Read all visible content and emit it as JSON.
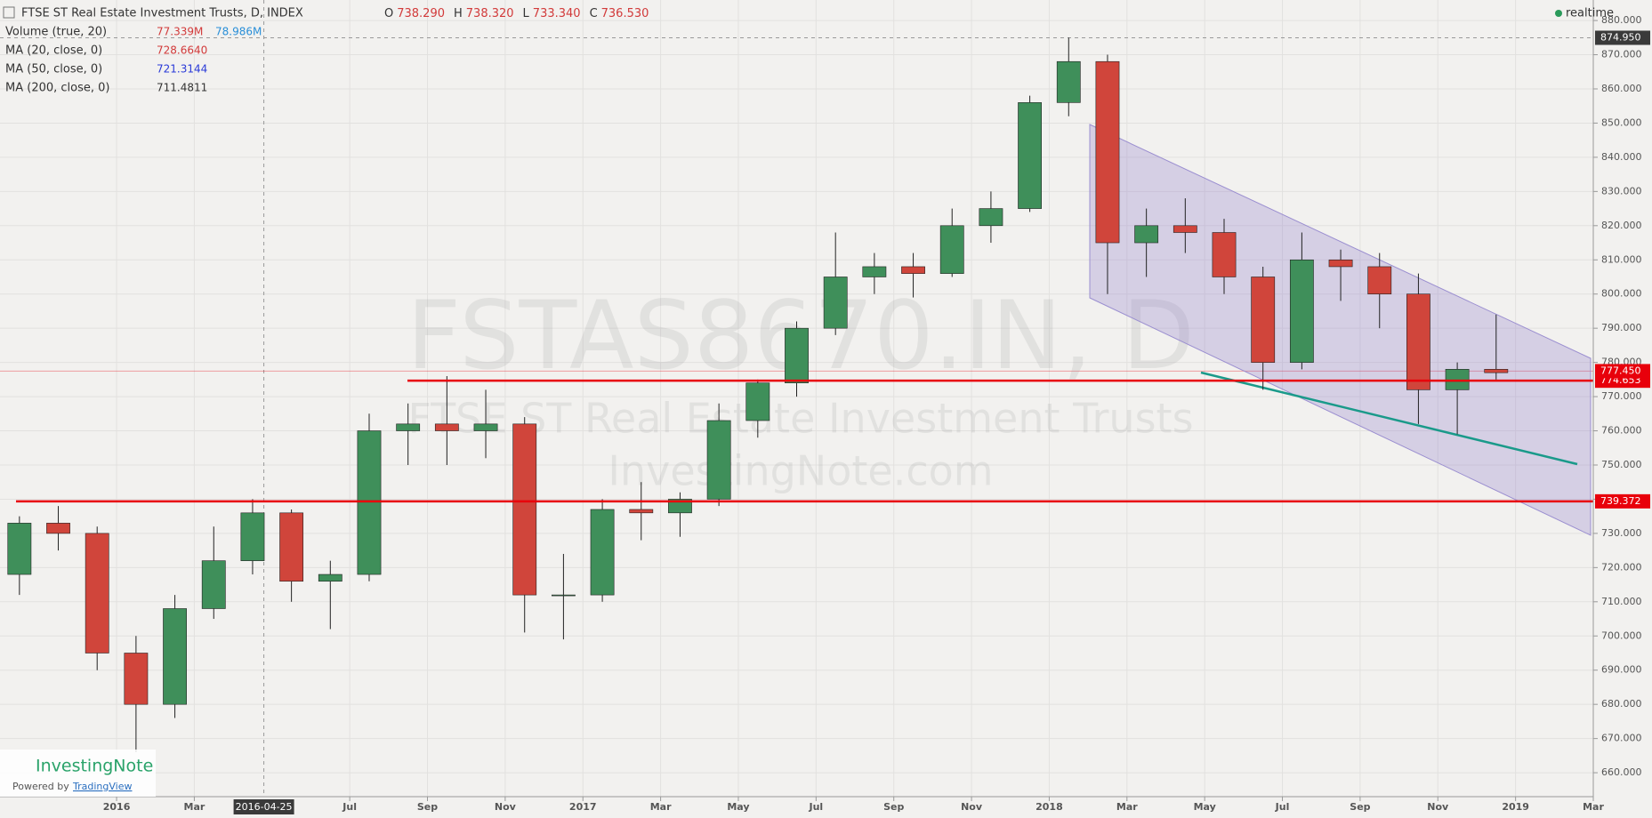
{
  "chart_data": {
    "type": "candlestick",
    "title": "FTSE ST Real Estate Investment Trusts, D, INDEX",
    "ohlc": [
      {
        "key": "O",
        "value": "738.290"
      },
      {
        "key": "H",
        "value": "738.320"
      },
      {
        "key": "L",
        "value": "733.340"
      },
      {
        "key": "C",
        "value": "736.530"
      }
    ],
    "indicators": [
      {
        "label": "Volume (true, 20)",
        "values": [
          "77.339M",
          "78.986M"
        ],
        "colors": [
          "#d23a3a",
          "#2a8fd8"
        ]
      },
      {
        "label": "MA (20, close, 0)",
        "values": [
          "728.6640"
        ],
        "colors": [
          "#d23a3a"
        ]
      },
      {
        "label": "MA (50, close, 0)",
        "values": [
          "721.3144"
        ],
        "colors": [
          "#2a3ad8"
        ]
      },
      {
        "label": "MA (200, close, 0)",
        "values": [
          "711.4811"
        ],
        "colors": [
          "#333333"
        ]
      }
    ],
    "status": "realtime",
    "watermark": [
      "FSTAS8670.IN, D",
      "FTSE ST Real Estate Investment Trusts",
      "InvestingNote.com"
    ],
    "logo": "InvestingNote",
    "powered": "Powered by",
    "provider": "TradingView",
    "x": [
      "2015-10",
      "2015-11",
      "2015-12",
      "2016-01",
      "2016-02",
      "2016-03",
      "2016-04",
      "2016-05",
      "2016-06",
      "2016-07",
      "2016-08",
      "2016-09",
      "2016-10",
      "2016-11",
      "2016-12",
      "2017-01",
      "2017-02",
      "2017-03",
      "2017-04",
      "2017-05",
      "2017-06",
      "2017-07",
      "2017-08",
      "2017-09",
      "2017-10",
      "2017-11",
      "2017-12",
      "2018-01",
      "2018-02",
      "2018-03",
      "2018-04",
      "2018-05",
      "2018-06",
      "2018-07",
      "2018-08",
      "2018-09",
      "2018-10",
      "2018-11",
      "2018-12"
    ],
    "open": [
      718,
      733,
      730,
      695,
      680,
      708,
      722,
      736,
      716,
      718,
      760,
      762,
      760,
      762,
      712,
      712,
      737,
      736,
      740,
      763,
      774,
      790,
      805,
      808,
      806,
      820,
      825,
      856,
      868,
      815,
      820,
      818,
      805,
      780,
      810,
      808,
      800,
      772,
      778
    ],
    "high": [
      735,
      738,
      732,
      700,
      712,
      732,
      740,
      737,
      722,
      765,
      768,
      776,
      772,
      764,
      724,
      740,
      745,
      742,
      768,
      775,
      792,
      818,
      812,
      812,
      825,
      830,
      858,
      875,
      870,
      825,
      828,
      822,
      808,
      818,
      813,
      812,
      806,
      780,
      794
    ],
    "low": [
      712,
      725,
      690,
      666,
      676,
      705,
      718,
      710,
      702,
      716,
      750,
      750,
      752,
      701,
      699,
      710,
      728,
      729,
      738,
      758,
      770,
      788,
      800,
      799,
      805,
      815,
      824,
      852,
      800,
      805,
      812,
      800,
      772,
      778,
      798,
      790,
      762,
      759,
      775
    ],
    "close": [
      733,
      730,
      695,
      680,
      708,
      722,
      736,
      716,
      718,
      760,
      762,
      760,
      762,
      712,
      712,
      737,
      736,
      740,
      763,
      774,
      790,
      805,
      808,
      806,
      820,
      825,
      856,
      868,
      815,
      820,
      818,
      805,
      780,
      810,
      808,
      800,
      772,
      778,
      777
    ],
    "up_color": "#3f8f5a",
    "down_color": "#d0453b",
    "xlim": [
      "2015-10",
      "2019-03"
    ],
    "xticks": [
      {
        "value": "2016-01",
        "label": "2016"
      },
      {
        "value": "2016-03",
        "label": "Mar"
      },
      {
        "value": "2016-07",
        "label": "Jul"
      },
      {
        "value": "2016-09",
        "label": "Sep"
      },
      {
        "value": "2016-11",
        "label": "Nov"
      },
      {
        "value": "2017-01",
        "label": "2017"
      },
      {
        "value": "2017-03",
        "label": "Mar"
      },
      {
        "value": "2017-05",
        "label": "May"
      },
      {
        "value": "2017-07",
        "label": "Jul"
      },
      {
        "value": "2017-09",
        "label": "Sep"
      },
      {
        "value": "2017-11",
        "label": "Nov"
      },
      {
        "value": "2018-01",
        "label": "2018"
      },
      {
        "value": "2018-03",
        "label": "Mar"
      },
      {
        "value": "2018-05",
        "label": "May"
      },
      {
        "value": "2018-07",
        "label": "Jul"
      },
      {
        "value": "2018-09",
        "label": "Sep"
      },
      {
        "value": "2018-11",
        "label": "Nov"
      },
      {
        "value": "2019-01",
        "label": "2019"
      },
      {
        "value": "2019-03",
        "label": "Mar"
      }
    ],
    "crosshair_x": "2016-04-25",
    "crosshair_y": {
      "value": 874.95,
      "label": "874.950"
    },
    "last_price": {
      "value": 777.45,
      "label": "777.450"
    },
    "levels": [
      {
        "value": 774.653,
        "label": "774.653"
      },
      {
        "value": 739.372,
        "label": "739.372"
      }
    ],
    "level_color": "#e8000b",
    "ylim": [
      653,
      886
    ],
    "yticks": [
      {
        "value": 660,
        "label": "660.000"
      },
      {
        "value": 670,
        "label": "670.000"
      },
      {
        "value": 680,
        "label": "680.000"
      },
      {
        "value": 690,
        "label": "690.000"
      },
      {
        "value": 700,
        "label": "700.000"
      },
      {
        "value": 710,
        "label": "710.000"
      },
      {
        "value": 720,
        "label": "720.000"
      },
      {
        "value": 730,
        "label": "730.000"
      },
      {
        "value": 740,
        "label": "740.000"
      },
      {
        "value": 750,
        "label": "750.000"
      },
      {
        "value": 760,
        "label": "760.000"
      },
      {
        "value": 770,
        "label": "770.000"
      },
      {
        "value": 780,
        "label": "780.000"
      },
      {
        "value": 790,
        "label": "790.000"
      },
      {
        "value": 800,
        "label": "800.000"
      },
      {
        "value": 810,
        "label": "810.000"
      },
      {
        "value": 820,
        "label": "820.000"
      },
      {
        "value": 830,
        "label": "830.000"
      },
      {
        "value": 840,
        "label": "840.000"
      },
      {
        "value": 850,
        "label": "850.000"
      },
      {
        "value": 860,
        "label": "860.000"
      },
      {
        "value": 870,
        "label": "870.000"
      },
      {
        "value": 880,
        "label": "880.000"
      }
    ],
    "grid": true
  }
}
